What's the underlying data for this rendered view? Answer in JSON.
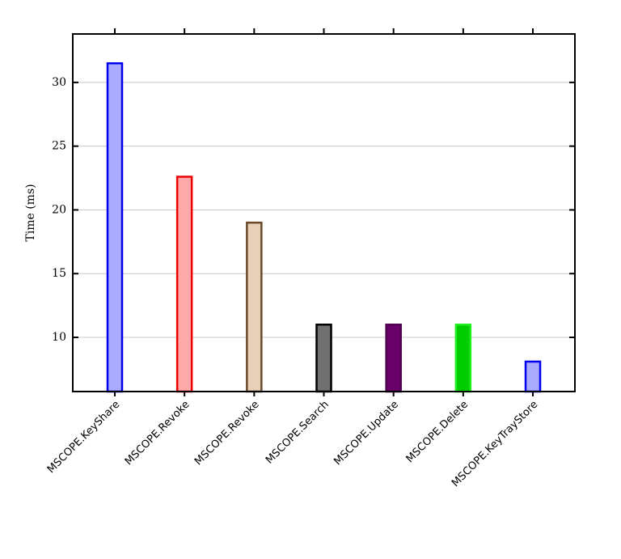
{
  "chart_data": {
    "type": "bar",
    "ylabel": "Time (ms)",
    "categories": [
      "MSCOPE.KeyShare",
      "MSCOPE.Revoke",
      "MSCOPE.Revoke",
      "MSCOPE.Search",
      "MSCOPE.Update",
      "MSCOPE.Delete",
      "MSCOPE.KeyTrayStore"
    ],
    "values": [
      31.5,
      22.6,
      19.0,
      11.0,
      11.0,
      11.0,
      8.1
    ],
    "colors": [
      "#aaaaff",
      "#ffaaaa",
      "#e8d0b8",
      "#707070",
      "#6a006a",
      "#00cc00",
      "#aaaaff"
    ],
    "edge_colors": [
      "#0000ee",
      "#ee0000",
      "#6b4a2e",
      "#000000",
      "#500050",
      "#22ee22",
      "#0000ee"
    ],
    "ylim": [
      5.75,
      33.8
    ],
    "yticks": [
      10,
      15,
      20,
      25,
      30
    ],
    "grid": true
  }
}
